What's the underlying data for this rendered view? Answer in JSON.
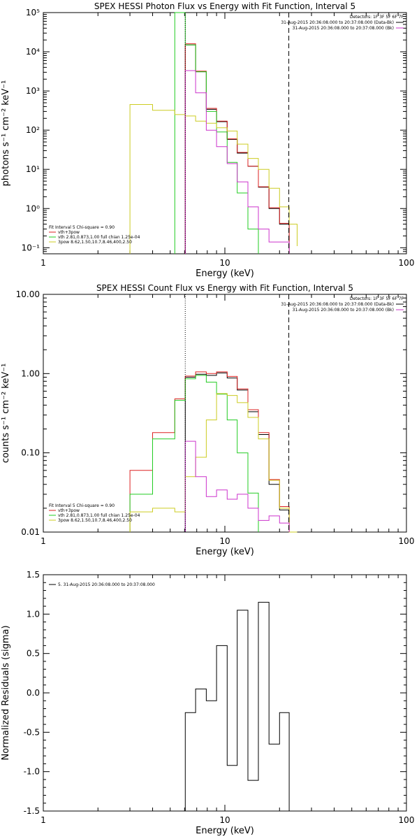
{
  "chart_data": [
    {
      "type": "line",
      "title": "SPEX HESSI Photon Flux vs Energy with Fit Function, Interval 5",
      "xlabel": "Energy (keV)",
      "ylabel": "photons s⁻¹ cm⁻² keV⁻¹",
      "xscale": "log",
      "yscale": "log",
      "xlim": [
        1,
        100
      ],
      "ylim": [
        0.07,
        100000
      ],
      "xticks": [
        1,
        10,
        100
      ],
      "xticklabels": [
        "1",
        "10",
        "100"
      ],
      "yticks": [
        0.1,
        1,
        10,
        100,
        1000,
        10000,
        100000
      ],
      "yticklabels": [
        "10⁻¹",
        "10⁰",
        "10¹",
        "10²",
        "10³",
        "10⁴",
        "10⁵"
      ],
      "vlines": [
        {
          "x": 6.05,
          "style": "dotted",
          "color": "#000000"
        },
        {
          "x": 22.5,
          "style": "dashed",
          "color": "#000000"
        }
      ],
      "legend_top": {
        "placement": "top-right",
        "lines": [
          {
            "text": "Detectors: 1F 3F 5F 6F 7F",
            "color": null
          },
          {
            "text": "31-Aug-2015 20:36:08.000 to 20:37:08.000 (Data-Bk)",
            "color": "#000000"
          },
          {
            "text": "31-Aug-2015 20:36:08.000 to 20:37:08.000 (Bk)",
            "color": "#cc33cc"
          }
        ]
      },
      "legend_bottom": {
        "placement": "bottom-left",
        "lines": [
          {
            "text": "Fit Interval 5   Chi-square = 0.90",
            "color": null
          },
          {
            "text": "vth+3pow",
            "color": "#dd2222"
          },
          {
            "text": "vth 2.81,0.873,1.00   full chian 1.25e-04",
            "color": "#22cc22"
          },
          {
            "text": "3pow 8.62,1.50,10.7,8.46,400,2.50",
            "color": "#cccc22"
          }
        ]
      },
      "series": [
        {
          "color": "#000000",
          "xs": [
            6.05,
            6.9,
            7.9,
            9.0,
            10.3,
            11.7,
            13.4,
            15.3,
            17.5,
            20.0,
            22.6
          ],
          "values": [
            15000,
            3100,
            340,
            165,
            58,
            26,
            12,
            3.5,
            1.0,
            0.4
          ]
        },
        {
          "color": "#dd2222",
          "xs": [
            6.05,
            6.9,
            7.9,
            9.0,
            10.3,
            11.7,
            13.4,
            15.3,
            17.5,
            20.0,
            22.6
          ],
          "values": [
            16000,
            3200,
            360,
            170,
            60,
            27,
            12,
            3.6,
            1.05,
            0.42
          ]
        },
        {
          "color": "#22cc22",
          "xs": [
            5.3,
            6.05,
            6.9,
            7.9,
            9.0,
            10.3,
            11.7,
            13.4,
            15.3
          ],
          "values": [
            160000,
            15000,
            3100,
            300,
            90,
            15,
            2.5,
            0.3
          ]
        },
        {
          "color": "#cccc22",
          "xs": [
            3.0,
            4.0,
            5.3,
            6.05,
            6.9,
            7.9,
            9.0,
            10.3,
            11.7,
            13.4,
            15.3,
            17.5,
            20.0,
            22.6,
            25.0
          ],
          "values": [
            450,
            320,
            250,
            230,
            170,
            150,
            115,
            95,
            44,
            19,
            10,
            3.3,
            1.1,
            0.4,
            0.11
          ]
        },
        {
          "color": "#cc33cc",
          "xs": [
            6.05,
            6.9,
            7.9,
            9.0,
            10.3,
            11.7,
            13.4,
            15.3,
            17.5,
            20.0,
            22.6
          ],
          "values": [
            3300,
            900,
            100,
            38,
            14,
            4.8,
            1.1,
            0.3,
            0.14,
            0.14
          ]
        }
      ]
    },
    {
      "type": "line",
      "title": "SPEX HESSI Count Flux vs Energy with Fit Function, Interval 5",
      "xlabel": "Energy (keV)",
      "ylabel": "counts s⁻¹ cm⁻² keV⁻¹",
      "xscale": "log",
      "yscale": "log",
      "xlim": [
        1,
        100
      ],
      "ylim": [
        0.01,
        10
      ],
      "xticks": [
        1,
        10,
        100
      ],
      "xticklabels": [
        "1",
        "10",
        "100"
      ],
      "yticks": [
        0.01,
        0.1,
        1,
        10
      ],
      "yticklabels": [
        "0.01",
        "0.10",
        "1.00",
        "10.00"
      ],
      "vlines": [
        {
          "x": 6.05,
          "style": "dotted",
          "color": "#000000"
        },
        {
          "x": 22.5,
          "style": "dashed",
          "color": "#000000"
        }
      ],
      "legend_top": {
        "placement": "top-right",
        "lines": [
          {
            "text": "Detectors: 1F 3F 5F 6F 7F",
            "color": null
          },
          {
            "text": "31-Aug-2015 20:36:08.000 to 20:37:08.000 (Data-Bk)",
            "color": "#000000"
          },
          {
            "text": "31-Aug-2015 20:36:08.000 to 20:37:08.000 (Bk)",
            "color": "#cc33cc"
          }
        ]
      },
      "legend_bottom": {
        "placement": "bottom-left",
        "lines": [
          {
            "text": "Fit Interval 5   Chi-square = 0.90",
            "color": null
          },
          {
            "text": "vth+3pow",
            "color": "#dd2222"
          },
          {
            "text": "vth 2.81,0.873,1.00   full chian 1.25e-04",
            "color": "#22cc22"
          },
          {
            "text": "3pow 8.62,1.50,10.7,8.46,400,2.50",
            "color": "#cccc22"
          }
        ]
      },
      "series": [
        {
          "color": "#000000",
          "xs": [
            6.05,
            6.9,
            7.9,
            9.0,
            10.3,
            11.7,
            13.4,
            15.3,
            17.5,
            20.0,
            22.6
          ],
          "values": [
            0.9,
            0.98,
            0.95,
            1.02,
            0.88,
            0.62,
            0.33,
            0.17,
            0.04,
            0.019
          ]
        },
        {
          "color": "#dd2222",
          "xs": [
            3.0,
            4.0,
            5.3,
            6.05,
            6.9,
            7.9,
            9.0,
            10.3,
            11.7,
            13.4,
            15.3,
            17.5,
            20.0,
            22.6
          ],
          "values": [
            0.06,
            0.18,
            0.48,
            0.93,
            1.05,
            1.0,
            1.05,
            0.92,
            0.64,
            0.35,
            0.18,
            0.046,
            0.021
          ]
        },
        {
          "color": "#22cc22",
          "xs": [
            3.0,
            4.0,
            5.3,
            6.05,
            6.9,
            7.9,
            9.0,
            10.3,
            11.7,
            13.4,
            15.3
          ],
          "values": [
            0.03,
            0.15,
            0.46,
            0.86,
            0.95,
            0.78,
            0.55,
            0.26,
            0.1,
            0.031
          ]
        },
        {
          "color": "#cccc22",
          "xs": [
            3.0,
            4.0,
            5.3,
            6.05,
            6.9,
            7.9,
            9.0,
            10.3,
            11.7,
            13.4,
            15.3,
            17.5,
            20.0,
            22.6,
            25.0
          ],
          "values": [
            0.018,
            0.02,
            0.018,
            0.05,
            0.088,
            0.26,
            0.56,
            0.53,
            0.43,
            0.28,
            0.15,
            0.045,
            0.02,
            0.01
          ]
        },
        {
          "color": "#cc33cc",
          "xs": [
            6.05,
            6.9,
            7.9,
            9.0,
            10.3,
            11.7,
            13.4,
            15.3,
            17.5,
            20.0,
            22.6
          ],
          "values": [
            0.14,
            0.05,
            0.028,
            0.034,
            0.026,
            0.03,
            0.02,
            0.014,
            0.016,
            0.013
          ]
        }
      ]
    },
    {
      "type": "line",
      "title": "",
      "xlabel": "Energy (keV)",
      "ylabel": "Normalized Residuals (sigma)",
      "xscale": "log",
      "yscale": "linear",
      "xlim": [
        1,
        100
      ],
      "ylim": [
        -1.5,
        1.5
      ],
      "xticks": [
        1,
        10,
        100
      ],
      "xticklabels": [
        "1",
        "10",
        "100"
      ],
      "yticks": [
        -1.5,
        -1.0,
        -0.5,
        0.0,
        0.5,
        1.0,
        1.5
      ],
      "yticklabels": [
        "-1.5",
        "-1.0",
        "-0.5",
        "0.0",
        "0.5",
        "1.0",
        "1.5"
      ],
      "legend_bottom": {
        "placement": "top-left",
        "lines": [
          {
            "text": "5. 31-Aug-2015 20:36:08.000 to 20:37:08.000",
            "color": "#000000"
          }
        ]
      },
      "series": [
        {
          "color": "#000000",
          "xs": [
            6.05,
            6.9,
            7.9,
            9.0,
            10.3,
            11.7,
            13.4,
            15.3,
            17.5,
            20.0,
            22.6
          ],
          "values": [
            -0.25,
            0.05,
            -0.1,
            0.6,
            -0.92,
            1.05,
            -1.11,
            1.15,
            -0.65,
            -0.25
          ],
          "drop_ends": true
        }
      ]
    }
  ]
}
